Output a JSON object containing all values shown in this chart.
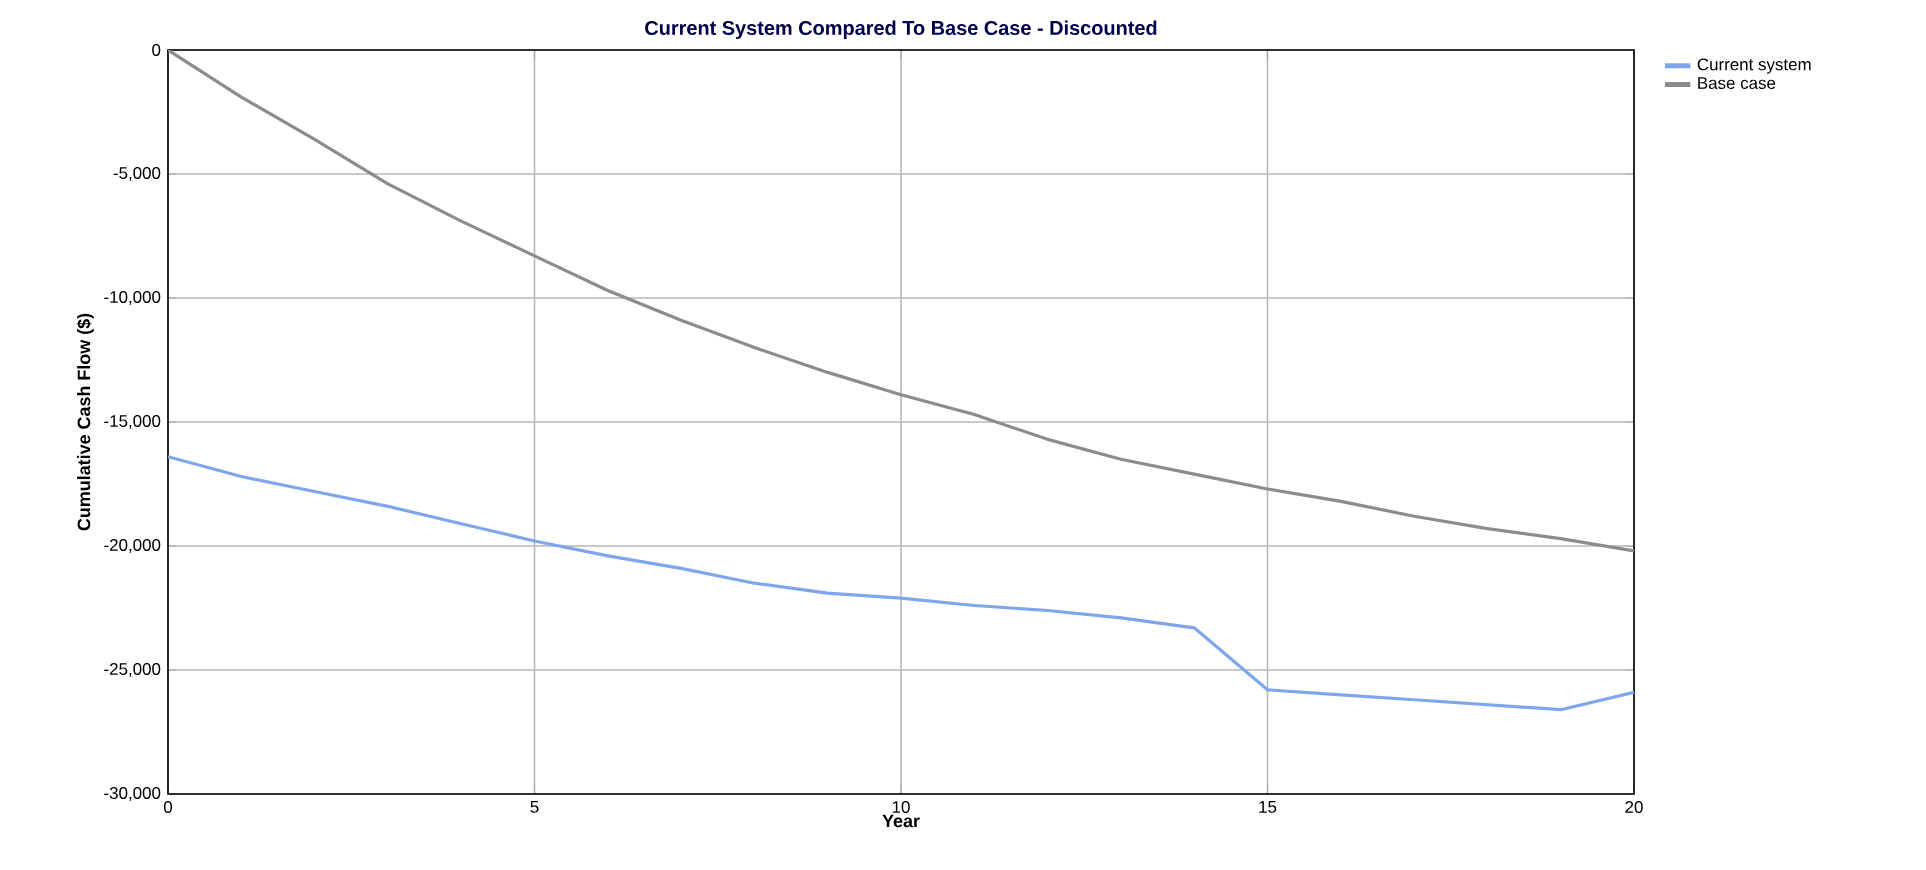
{
  "chart_data": {
    "type": "line",
    "title": "Current System Compared To Base Case - Discounted",
    "xlabel": "Year",
    "ylabel": "Cumulative Cash Flow ($)",
    "x": [
      0,
      1,
      2,
      3,
      4,
      5,
      6,
      7,
      8,
      9,
      10,
      11,
      12,
      13,
      14,
      15,
      16,
      17,
      18,
      19,
      20
    ],
    "series": [
      {
        "name": "Current system",
        "color": "#7fa6ea",
        "values": [
          -16400,
          -17200,
          -17800,
          -18400,
          -19100,
          -19800,
          -20400,
          -20900,
          -21500,
          -21900,
          -22100,
          -22400,
          -22600,
          -22900,
          -23300,
          -25800,
          -26000,
          -26200,
          -26400,
          -26600,
          -25900
        ]
      },
      {
        "name": "Base case",
        "color": "#8c8c8c",
        "values": [
          0,
          -1900,
          -3600,
          -5400,
          -6900,
          -8300,
          -9700,
          -10900,
          -12000,
          -13000,
          -13900,
          -14700,
          -15700,
          -16500,
          -17100,
          -17700,
          -18200,
          -18800,
          -19300,
          -19700,
          -20200
        ]
      }
    ],
    "xlim": [
      0,
      20
    ],
    "xticks": [
      0,
      5,
      10,
      15,
      20
    ],
    "ylim": [
      -30000,
      0
    ],
    "yticks": [
      {
        "value": -30000,
        "label": "-30,000"
      },
      {
        "value": -25000,
        "label": "-25,000"
      },
      {
        "value": -20000,
        "label": "-20,000"
      },
      {
        "value": -15000,
        "label": "-15,000"
      },
      {
        "value": -10000,
        "label": "-10,000"
      },
      {
        "value": -5000,
        "label": "-5,000"
      },
      0
    ],
    "grid": true,
    "legend": "top right",
    "marker": "none",
    "line_style": "solid"
  }
}
